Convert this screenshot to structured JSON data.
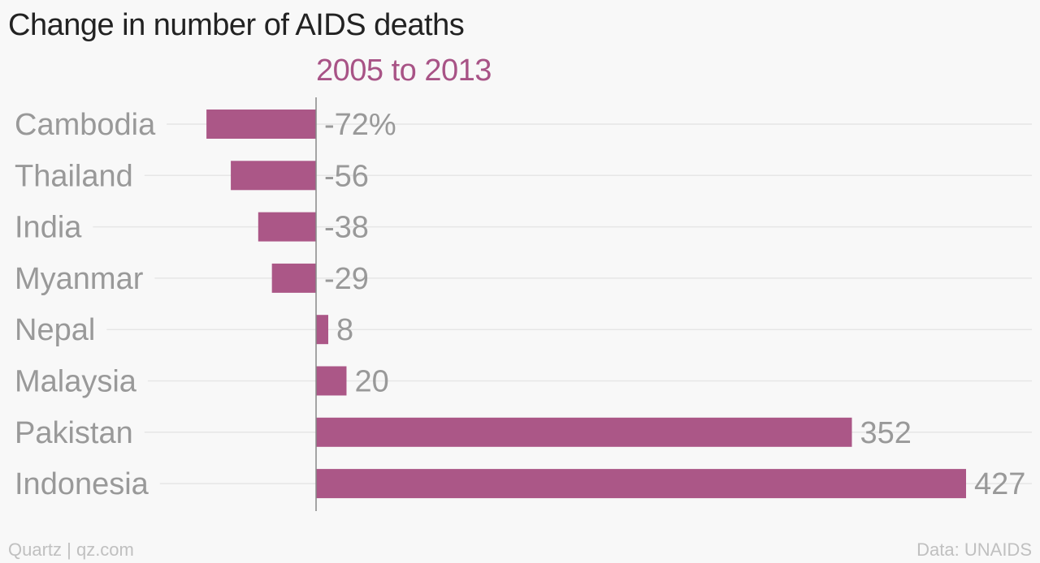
{
  "title": "Change in number of AIDS deaths",
  "subtitle": "2005 to 2013",
  "footer": {
    "source_left": "Quartz | qz.com",
    "source_right": "Data: UNAIDS"
  },
  "colors": {
    "bar": "#ab5787",
    "subtitle": "#a85386",
    "label": "#999999",
    "gridline": "#e6e6e6",
    "zero_line": "#888888"
  },
  "chart_data": {
    "type": "bar",
    "orientation": "horizontal",
    "title": "Change in number of AIDS deaths",
    "subtitle": "2005 to 2013",
    "categories": [
      "Cambodia",
      "Thailand",
      "India",
      "Myanmar",
      "Nepal",
      "Malaysia",
      "Pakistan",
      "Indonesia"
    ],
    "values": [
      -72,
      -56,
      -38,
      -29,
      8,
      20,
      352,
      427
    ],
    "value_labels": [
      "-72%",
      "-56",
      "-38",
      "-29",
      "8",
      "20",
      "352",
      "427"
    ],
    "unit": "%",
    "xlim": [
      -72,
      427
    ],
    "grid": true
  }
}
